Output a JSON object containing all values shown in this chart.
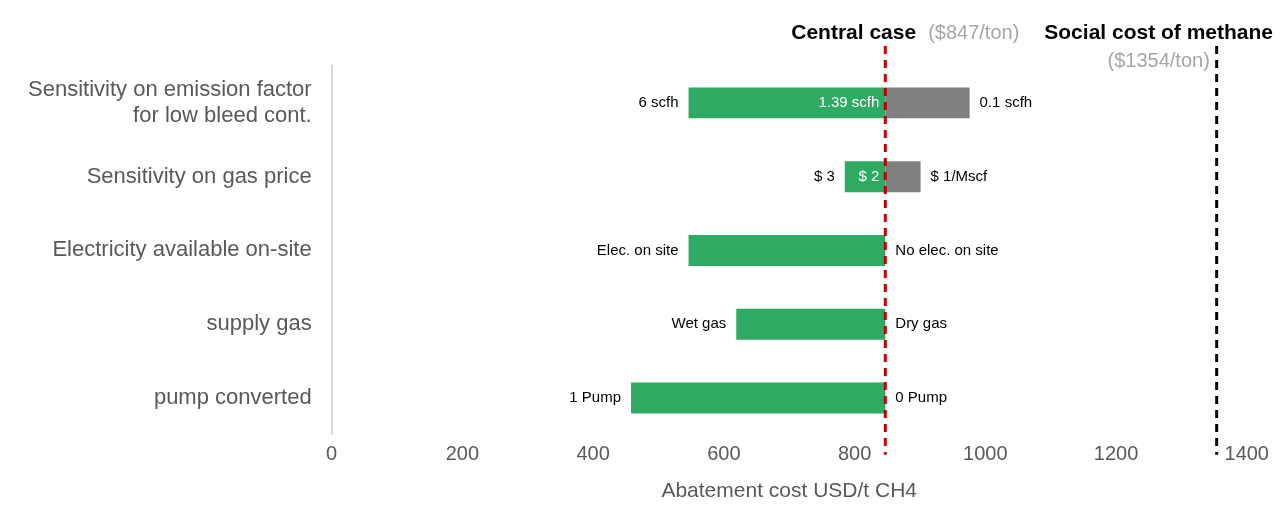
{
  "chart_data": {
    "type": "bar",
    "orientation": "horizontal",
    "xlabel": "Abatement cost USD/t CH4",
    "categories": [
      "Sensitivity on emission factor for low bleed cont.",
      "Sensitivity on gas price",
      "Electricity available on-site",
      "supply gas",
      "pump converted"
    ],
    "series": [
      {
        "color": "#2eaa63",
        "base": [
          847,
          847,
          847,
          847,
          847
        ],
        "values": [
          -301,
          -62,
          -301,
          -228,
          -389
        ]
      },
      {
        "color": "#7f7f7f",
        "base": [
          847,
          847,
          null,
          null,
          null
        ],
        "values": [
          129,
          54,
          null,
          null,
          null
        ]
      }
    ],
    "xlim": [
      0,
      1400
    ],
    "xticks": [
      0,
      200,
      400,
      600,
      800,
      1000,
      1200,
      1400
    ],
    "grid": false,
    "legend": false,
    "ref_lines": [
      {
        "axis": "x",
        "value": 847,
        "label": "Central case  ($847/ton)",
        "color": "#c00000",
        "line_style": "dashed"
      },
      {
        "axis": "x",
        "value": 1354,
        "label": "Social cost of methane ($1354/ton)",
        "color": "#000000",
        "line_style": "dashed"
      }
    ],
    "annotations": [
      {
        "text": "6 scfh",
        "x": 546,
        "y": "Sensitivity on emission factor for low bleed cont."
      },
      {
        "text": "1.39 scfh",
        "x": 847,
        "y": "Sensitivity on emission factor for low bleed cont."
      },
      {
        "text": "0.1 scfh",
        "x": 976,
        "y": "Sensitivity on emission factor for low bleed cont."
      },
      {
        "text": "$ 3",
        "x": 785,
        "y": "Sensitivity on gas price"
      },
      {
        "text": "$ 2",
        "x": 847,
        "y": "Sensitivity on gas price"
      },
      {
        "text": "$ 1/Mscf",
        "x": 901,
        "y": "Sensitivity on gas price"
      },
      {
        "text": "Elec. on site",
        "x": 546,
        "y": "Electricity available on-site"
      },
      {
        "text": "No elec. on site",
        "x": 847,
        "y": "Electricity available on-site"
      },
      {
        "text": "Wet gas",
        "x": 619,
        "y": "supply gas"
      },
      {
        "text": "Dry gas",
        "x": 847,
        "y": "supply gas"
      },
      {
        "text": "1 Pump",
        "x": 458,
        "y": "pump converted"
      },
      {
        "text": "0 Pump",
        "x": 847,
        "y": "pump converted"
      }
    ]
  }
}
